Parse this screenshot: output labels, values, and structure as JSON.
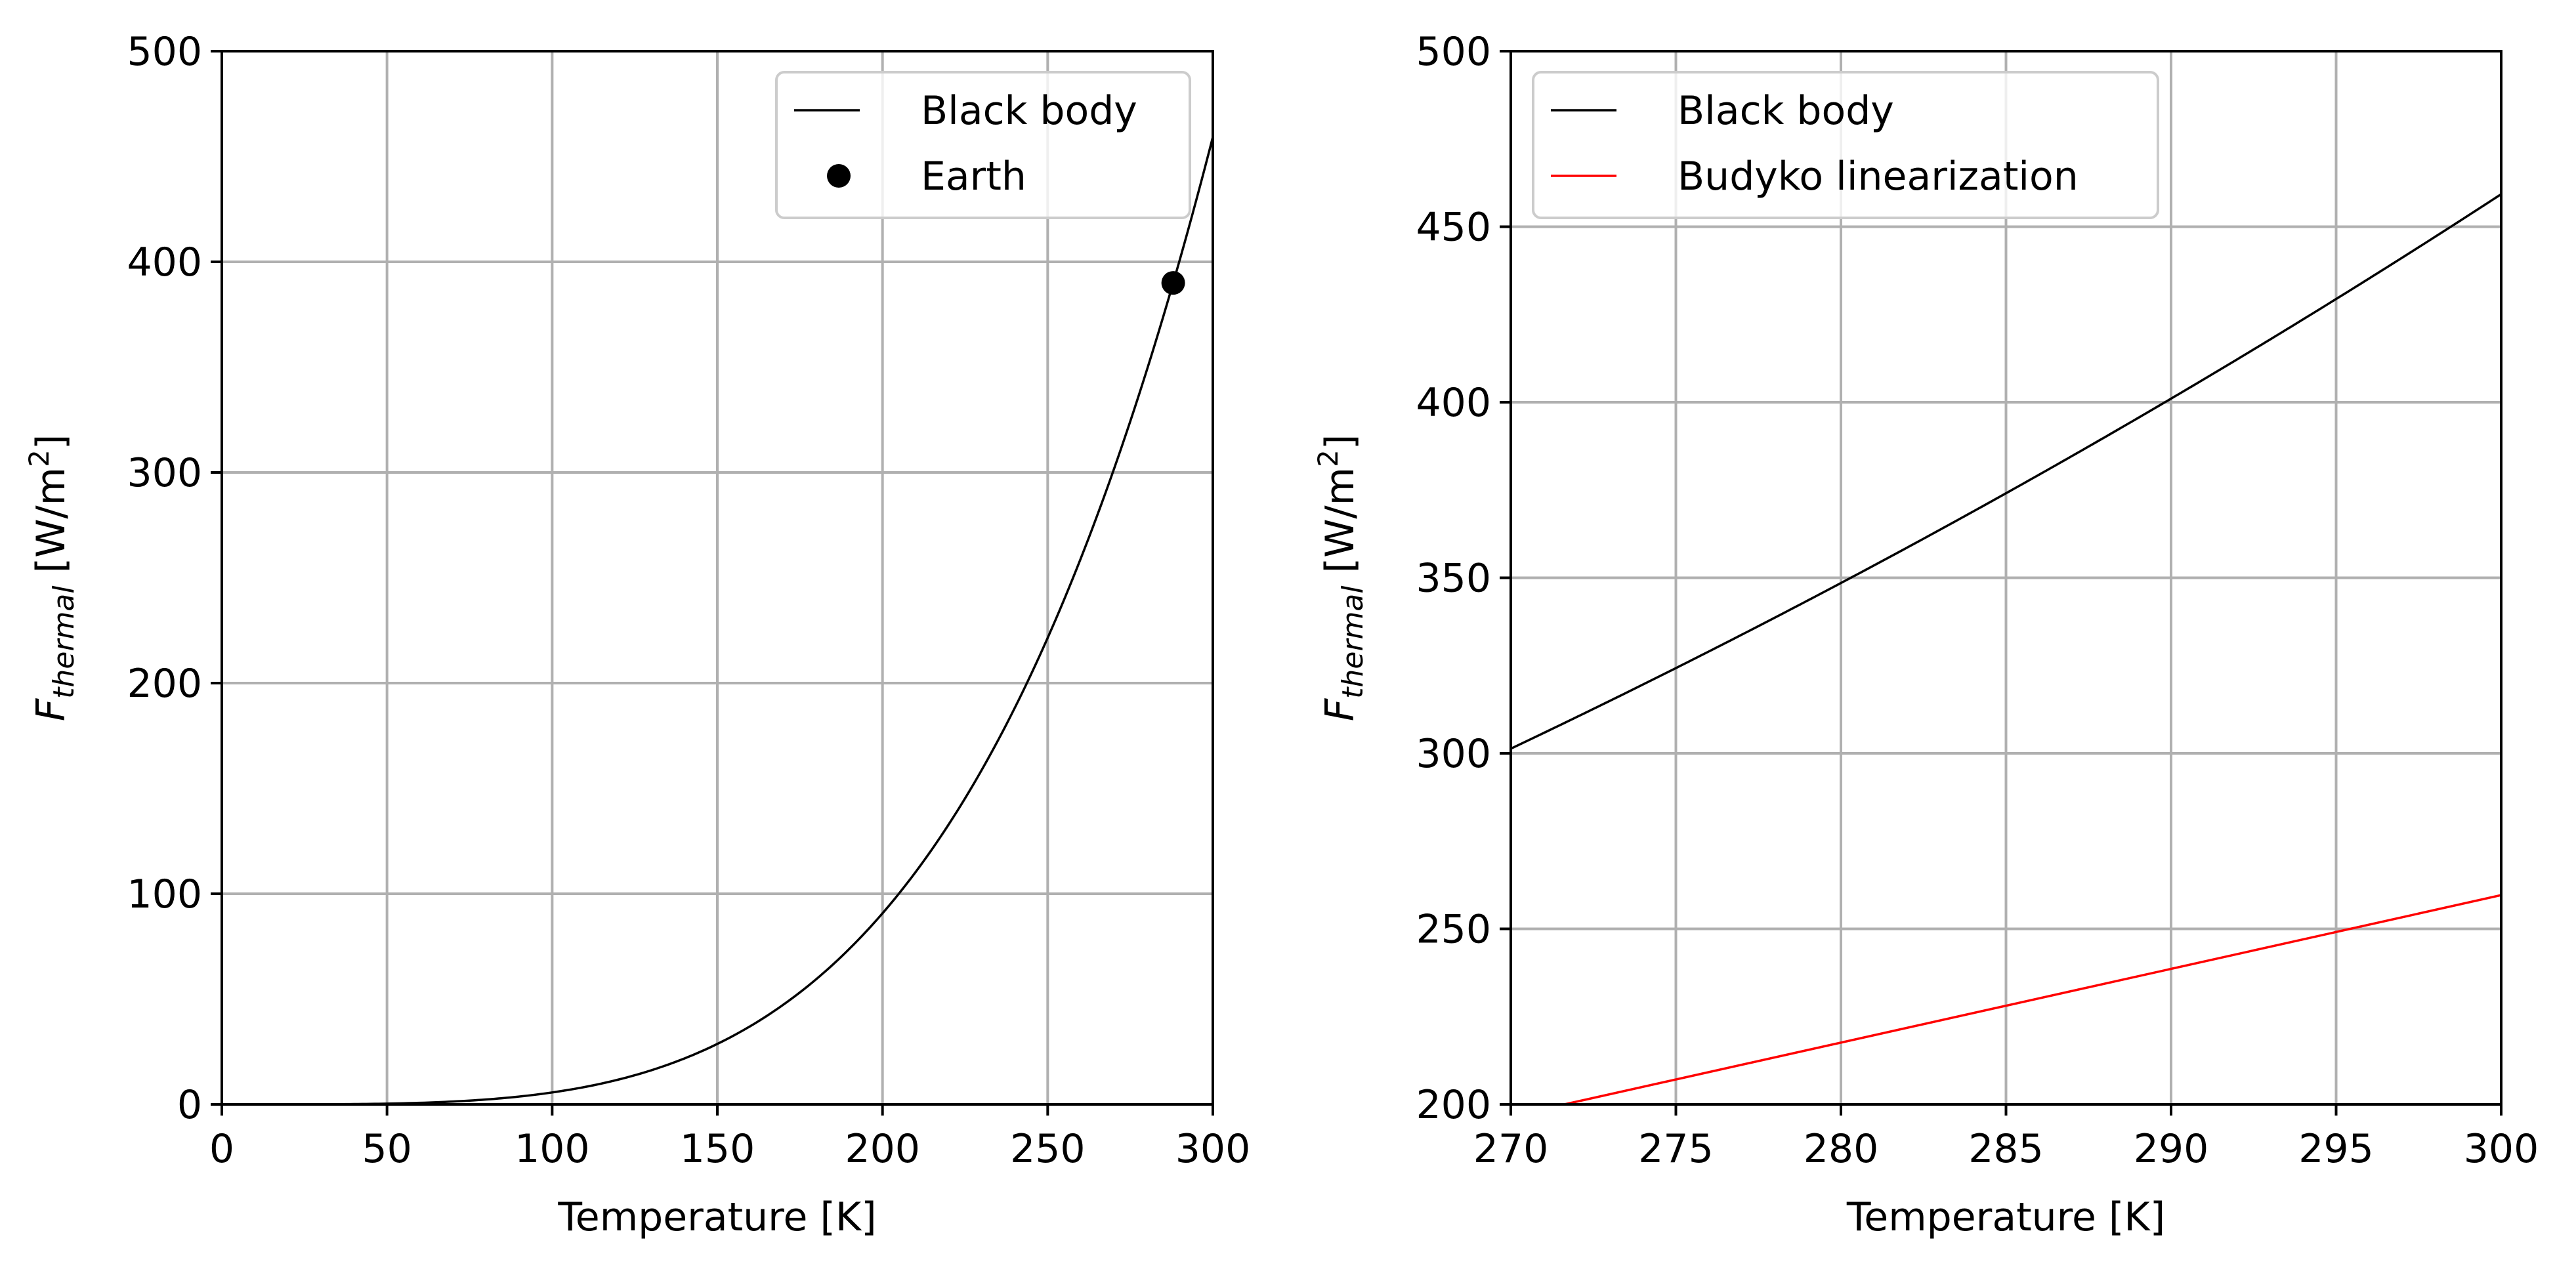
{
  "chart_data": [
    {
      "type": "line",
      "xlabel": "Temperature [K]",
      "ylabel": {
        "main": "F",
        "sub": "thermal",
        "unit_pre": " [W/m",
        "unit_sup": "2",
        "unit_post": "]"
      },
      "xlim": [
        0,
        300
      ],
      "ylim": [
        0,
        500
      ],
      "xticks": [
        0,
        50,
        100,
        150,
        200,
        250,
        300
      ],
      "yticks": [
        0,
        100,
        200,
        300,
        400,
        500
      ],
      "grid": true,
      "legend_position": "top-right",
      "series": [
        {
          "name": "Black body",
          "kind": "line",
          "color": "#000000",
          "function": "stefan_boltzmann",
          "sigma": 5.67e-08,
          "x_range": [
            0,
            300
          ]
        },
        {
          "name": "Earth",
          "kind": "point",
          "color": "#000000",
          "x": [
            288
          ],
          "y": [
            390
          ]
        }
      ]
    },
    {
      "type": "line",
      "xlabel": "Temperature [K]",
      "ylabel": {
        "main": "F",
        "sub": "thermal",
        "unit_pre": " [W/m",
        "unit_sup": "2",
        "unit_post": "]"
      },
      "xlim": [
        270,
        300
      ],
      "ylim": [
        200,
        500
      ],
      "xticks": [
        270,
        275,
        280,
        285,
        290,
        295,
        300
      ],
      "yticks": [
        200,
        250,
        300,
        350,
        400,
        450,
        500
      ],
      "grid": true,
      "legend_position": "top-left",
      "series": [
        {
          "name": "Black body",
          "kind": "line",
          "color": "#000000",
          "function": "stefan_boltzmann",
          "sigma": 5.67e-08,
          "x_range": [
            270,
            300
          ]
        },
        {
          "name": "Budyko linearization",
          "kind": "line",
          "color": "#ff0000",
          "function": "linear",
          "x": [
            270,
            300
          ],
          "y": [
            196.6,
            259.6
          ]
        }
      ]
    }
  ]
}
